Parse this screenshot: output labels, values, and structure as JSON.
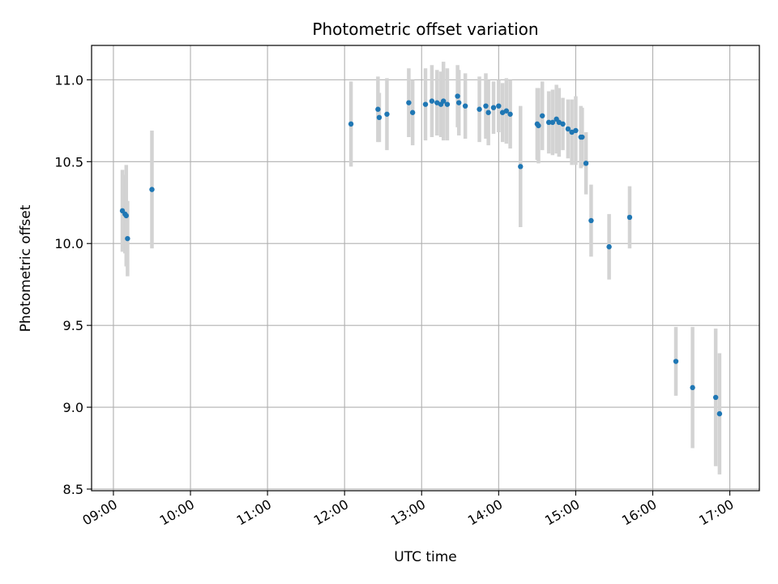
{
  "chart_data": {
    "type": "scatter",
    "title": "Photometric offset variation",
    "xlabel": "UTC time",
    "ylabel": "Photometric offset",
    "x_tick_labels": [
      "09:00",
      "10:00",
      "11:00",
      "12:00",
      "13:00",
      "14:00",
      "15:00",
      "16:00",
      "17:00"
    ],
    "x_tick_hours": [
      9,
      10,
      11,
      12,
      13,
      14,
      15,
      16,
      17
    ],
    "y_ticks": [
      8.5,
      9.0,
      9.5,
      10.0,
      10.5,
      11.0
    ],
    "y_tick_labels": [
      "8.5",
      "9.0",
      "9.5",
      "10.0",
      "10.5",
      "11.0"
    ],
    "xlim": [
      "08:43",
      "17:23"
    ],
    "ylim": [
      8.49,
      11.21
    ],
    "grid": true,
    "colors": {
      "point": "#1f77b4",
      "errorbar": "#d3d3d3",
      "grid": "#b0b0b0"
    },
    "series": [
      {
        "x": [
          "09:07",
          "09:09",
          "09:10",
          "09:11",
          "09:30",
          "12:05",
          "12:26",
          "12:27",
          "12:33",
          "12:50",
          "12:53",
          "13:03",
          "13:08",
          "13:12",
          "13:15",
          "13:17",
          "13:20",
          "13:28",
          "13:29",
          "13:34",
          "13:45",
          "13:50",
          "13:52",
          "13:56",
          "14:00",
          "14:03",
          "14:06",
          "14:09",
          "14:17",
          "14:30",
          "14:31",
          "14:34",
          "14:39",
          "14:42",
          "14:45",
          "14:47",
          "14:50",
          "14:54",
          "14:57",
          "15:00",
          "15:04",
          "15:05",
          "15:08",
          "15:12",
          "15:26",
          "15:42",
          "16:18",
          "16:31",
          "16:49",
          "16:52"
        ],
        "y": [
          10.2,
          10.18,
          10.17,
          10.03,
          10.33,
          10.73,
          10.82,
          10.77,
          10.79,
          10.86,
          10.8,
          10.85,
          10.87,
          10.86,
          10.85,
          10.87,
          10.85,
          10.9,
          10.86,
          10.84,
          10.82,
          10.84,
          10.8,
          10.83,
          10.84,
          10.8,
          10.81,
          10.79,
          10.47,
          10.73,
          10.72,
          10.78,
          10.74,
          10.74,
          10.76,
          10.74,
          10.73,
          10.7,
          10.68,
          10.69,
          10.65,
          10.65,
          10.49,
          10.14,
          9.98,
          10.16,
          9.28,
          9.12,
          9.06,
          8.96
        ],
        "yerr": [
          0.25,
          0.24,
          0.31,
          0.23,
          0.36,
          0.26,
          0.2,
          0.15,
          0.22,
          0.21,
          0.2,
          0.22,
          0.22,
          0.2,
          0.2,
          0.24,
          0.22,
          0.19,
          0.2,
          0.2,
          0.2,
          0.2,
          0.2,
          0.16,
          0.16,
          0.18,
          0.2,
          0.21,
          0.37,
          0.22,
          0.23,
          0.21,
          0.19,
          0.2,
          0.21,
          0.21,
          0.16,
          0.18,
          0.2,
          0.21,
          0.19,
          0.18,
          0.19,
          0.22,
          0.2,
          0.19,
          0.21,
          0.37,
          0.42,
          0.37
        ]
      }
    ]
  }
}
